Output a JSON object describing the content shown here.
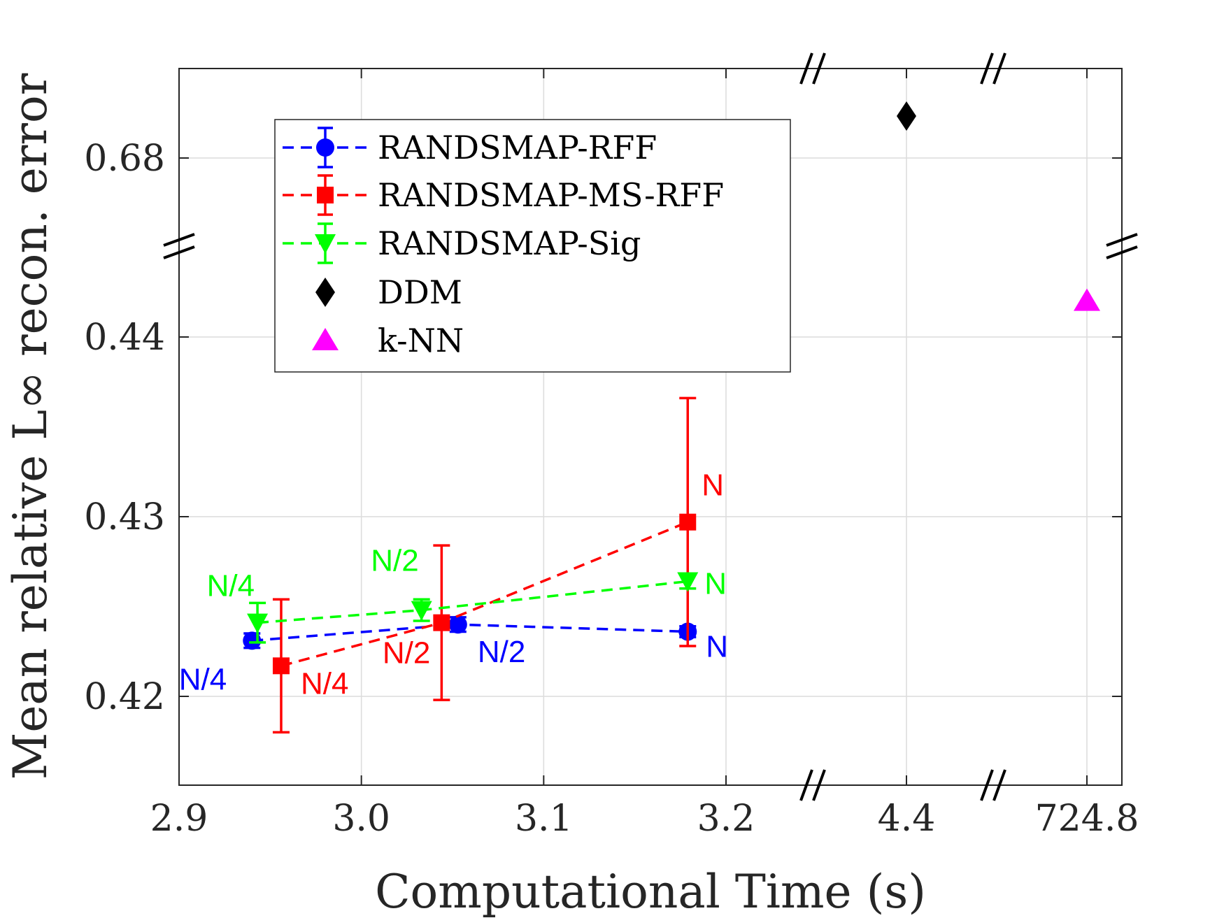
{
  "chart_data": {
    "type": "scatter",
    "title": "",
    "xlabel": "Computational Time (s)",
    "ylabel": "Mean relative L∞ recon. error",
    "x_ticks": [
      "2.9",
      "3.0",
      "3.1",
      "3.2",
      "4.4",
      "724.8"
    ],
    "y_ticks": [
      "0.42",
      "0.43",
      "0.44",
      "0.68"
    ],
    "x_segments": [
      {
        "range": [
          2.9,
          3.2
        ],
        "ticks": [
          2.9,
          3.0,
          3.1,
          3.2
        ]
      },
      {
        "range": [
          4.4,
          4.4
        ],
        "ticks": [
          4.4
        ]
      },
      {
        "range": [
          724.8,
          724.8
        ],
        "ticks": [
          724.8
        ]
      }
    ],
    "y_segments": [
      {
        "range": [
          0.4155,
          0.44
        ],
        "ticks": [
          0.42,
          0.43,
          0.44
        ]
      },
      {
        "range": [
          0.68,
          0.68
        ],
        "ticks": [
          0.68
        ]
      }
    ],
    "axis_breaks": "x-axis between 3.2 and 4.4 and between 4.4 and 724.8; y-axis between 0.44 and 0.68",
    "grid": true,
    "legend_position": "top-left",
    "series": [
      {
        "name": "RANDSMAP-RFF",
        "color": "#0000ff",
        "marker": "circle",
        "line": "dashed",
        "points": [
          {
            "x": 2.94,
            "y": 0.4231,
            "err": 0.0004,
            "label": "N/4"
          },
          {
            "x": 3.053,
            "y": 0.424,
            "err": 0.0004,
            "label": "N/2"
          },
          {
            "x": 3.179,
            "y": 0.4236,
            "err": 0.0003,
            "label": "N"
          }
        ]
      },
      {
        "name": "RANDSMAP-MS-RFF",
        "color": "#ff0000",
        "marker": "square",
        "line": "dashed",
        "points": [
          {
            "x": 2.956,
            "y": 0.4217,
            "err": 0.0037,
            "label": "N/4"
          },
          {
            "x": 3.044,
            "y": 0.4241,
            "err": 0.0043,
            "label": "N/2"
          },
          {
            "x": 3.179,
            "y": 0.4297,
            "err": 0.0069,
            "label": "N"
          }
        ]
      },
      {
        "name": "RANDSMAP-Sig",
        "color": "#00ff00",
        "marker": "triangle-down",
        "line": "dashed",
        "points": [
          {
            "x": 2.943,
            "y": 0.4241,
            "err": 0.0011,
            "label": "N/4"
          },
          {
            "x": 3.033,
            "y": 0.4248,
            "err": 0.0006,
            "label": "N/2"
          },
          {
            "x": 3.179,
            "y": 0.4264,
            "err": 0.0004,
            "label": "N"
          }
        ]
      },
      {
        "name": "DDM",
        "color": "#000000",
        "marker": "diamond",
        "line": "none",
        "points": [
          {
            "x": 4.4,
            "y": 0.683
          }
        ]
      },
      {
        "name": "k-NN",
        "color": "#ff00ff",
        "marker": "triangle-up",
        "line": "none",
        "points": [
          {
            "x": 724.8,
            "y": 0.442
          }
        ]
      }
    ]
  }
}
